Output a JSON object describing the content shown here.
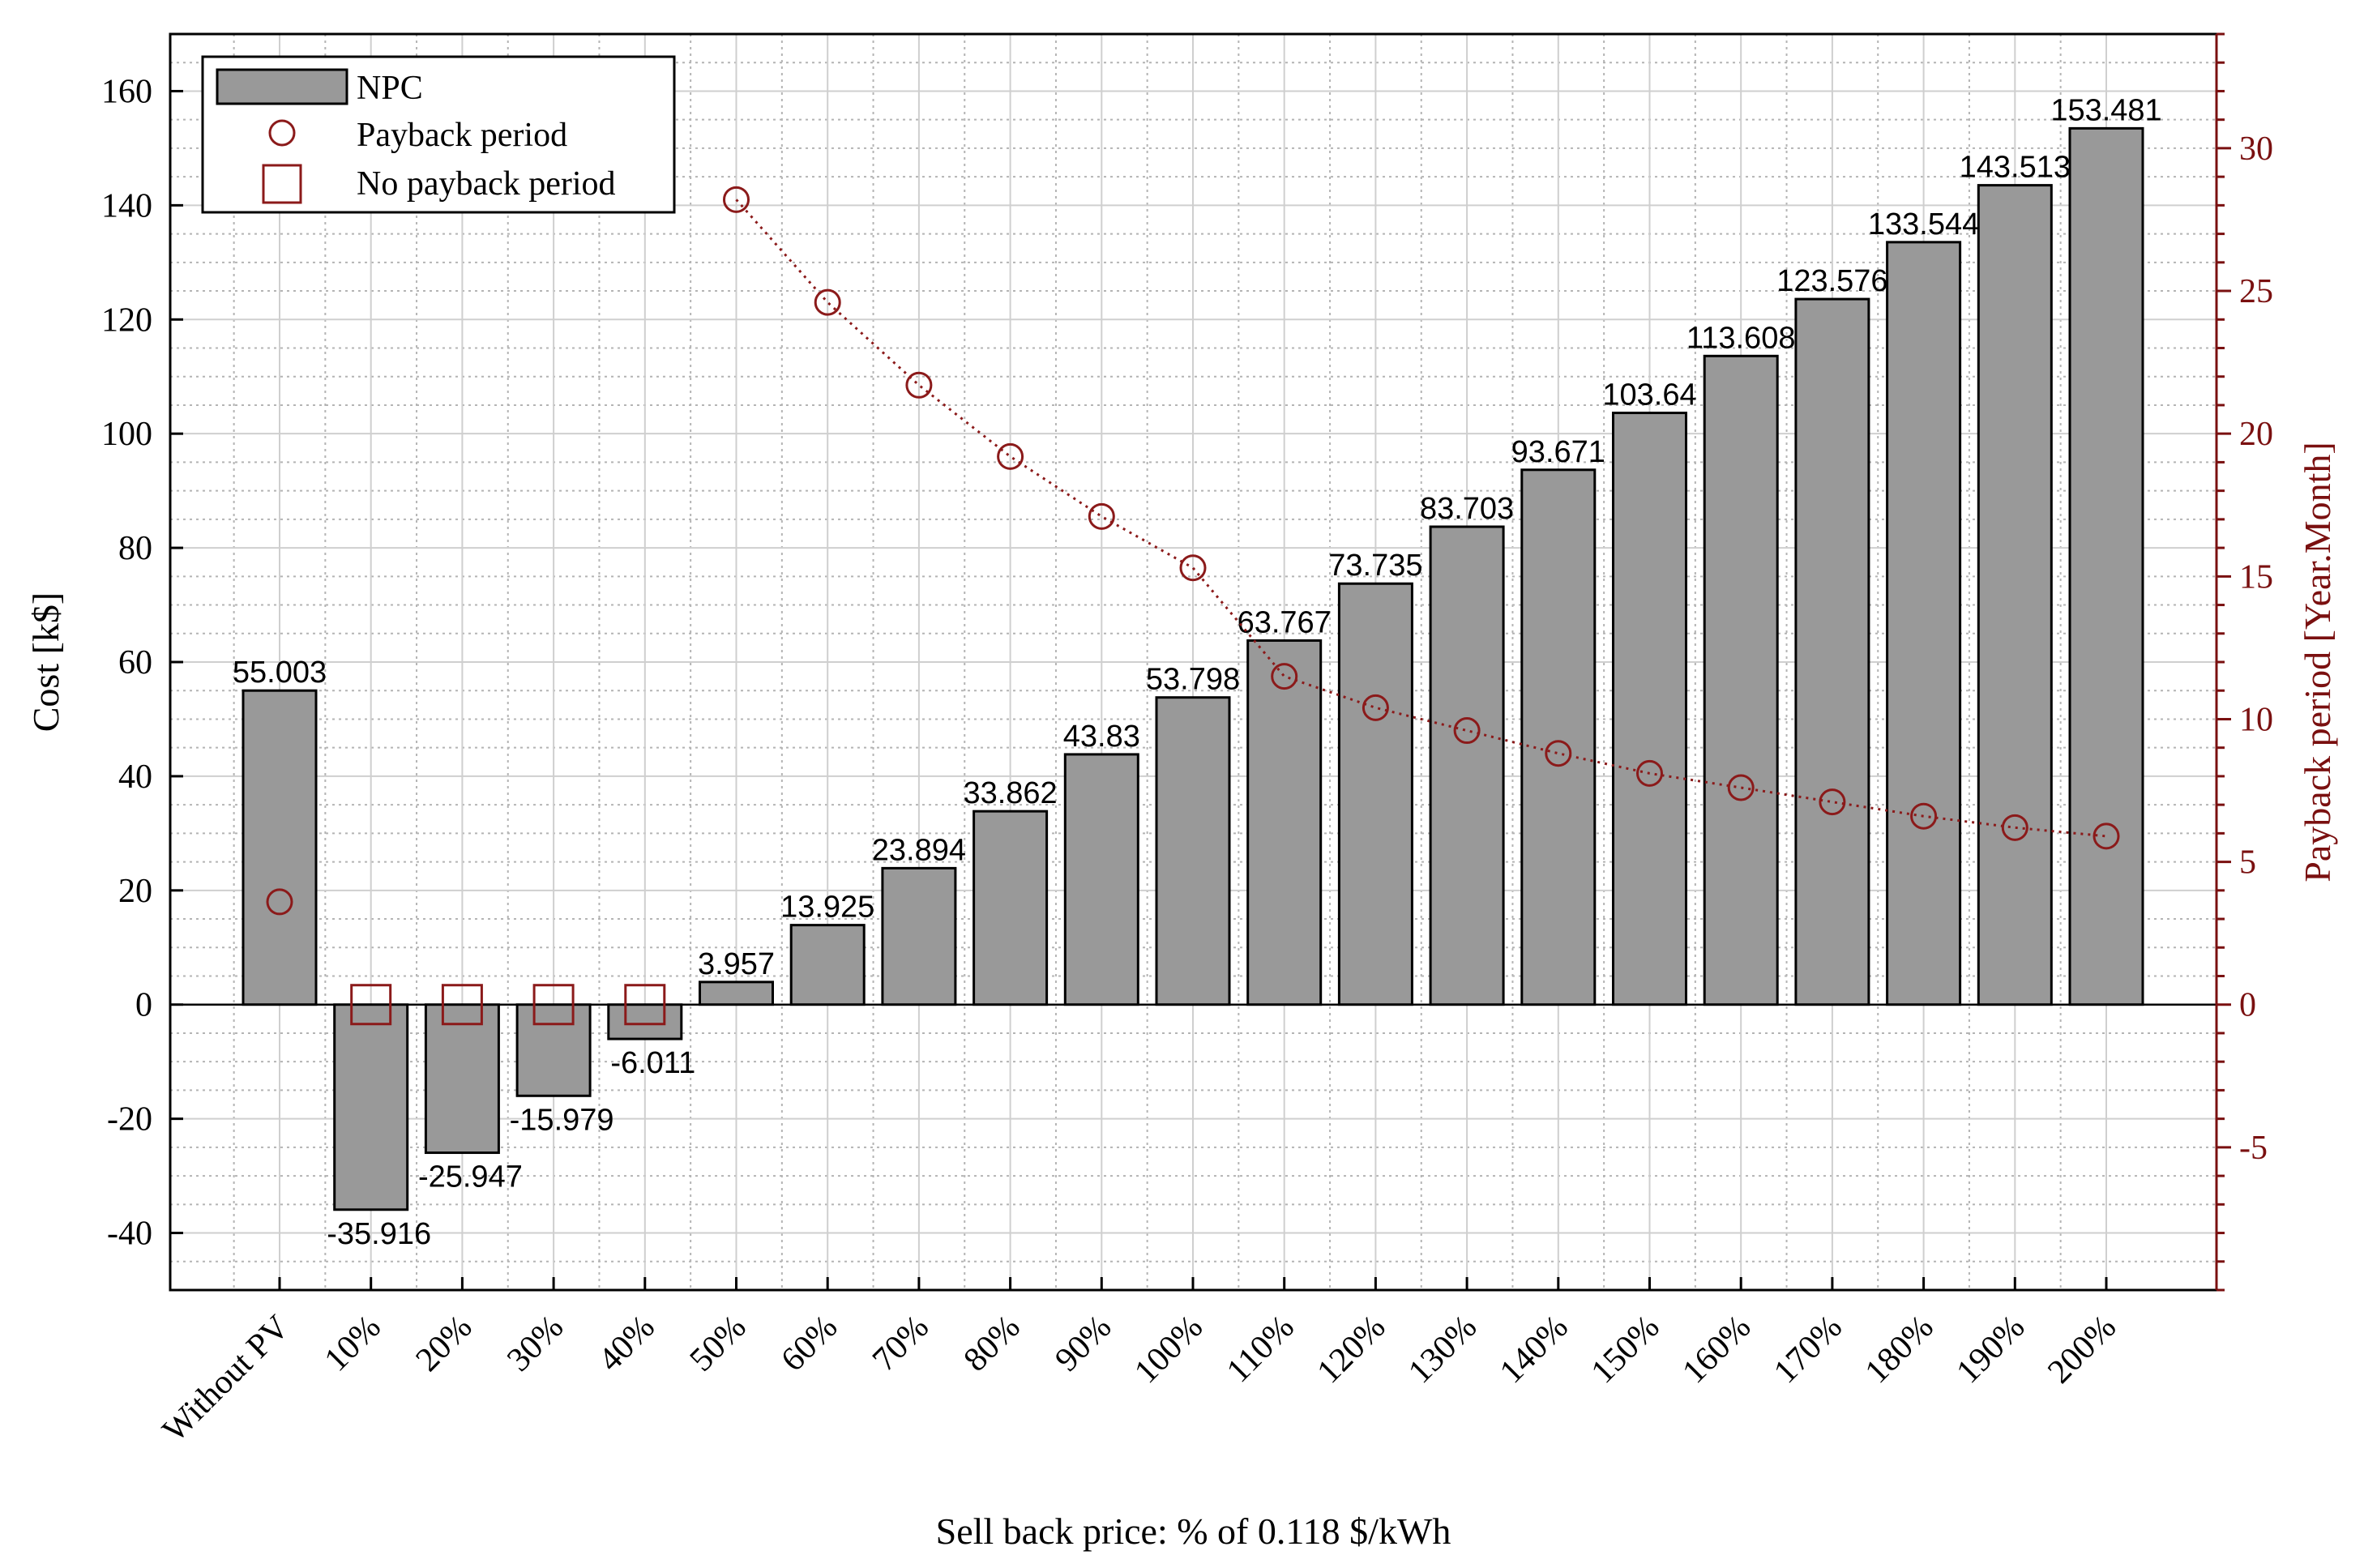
{
  "chart_data": {
    "type": "bar",
    "title": "",
    "xlabel": "Sell back price: % of 0.118 $/kWh",
    "ylabel": "Cost [k$]",
    "y2label": "Payback period [Year.Month]",
    "categories": [
      "Without PV",
      "10%",
      "20%",
      "30%",
      "40%",
      "50%",
      "60%",
      "70%",
      "80%",
      "90%",
      "100%",
      "110%",
      "120%",
      "130%",
      "140%",
      "150%",
      "160%",
      "170%",
      "180%",
      "190%",
      "200%"
    ],
    "ylim": [
      -50,
      170
    ],
    "y2lim": [
      -10,
      34
    ],
    "yticks": [
      -40,
      -20,
      0,
      20,
      40,
      60,
      80,
      100,
      120,
      140,
      160
    ],
    "y2ticks": [
      -5,
      0,
      5,
      10,
      15,
      20,
      25,
      30
    ],
    "grid": true,
    "legend_position": "top-left",
    "series": [
      {
        "name": "NPC",
        "type": "bar",
        "axis": "left",
        "values": [
          55.003,
          -35.916,
          -25.947,
          -15.979,
          -6.011,
          3.957,
          13.925,
          23.894,
          33.862,
          43.83,
          53.798,
          63.767,
          73.735,
          83.703,
          93.671,
          103.64,
          113.608,
          123.576,
          133.544,
          143.513,
          153.481
        ],
        "labels": [
          "55.003",
          "-35.916",
          "-25.947",
          "-15.979",
          "-6.011",
          "3.957",
          "13.925",
          "23.894",
          "33.862",
          "43.83",
          "53.798",
          "63.767",
          "73.735",
          "83.703",
          "93.671",
          "103.64",
          "113.608",
          "123.576",
          "133.544",
          "143.513",
          "153.481"
        ]
      },
      {
        "name": "Payback period",
        "type": "line",
        "axis": "right",
        "values": [
          3.6,
          null,
          null,
          null,
          null,
          28.2,
          24.6,
          21.7,
          19.2,
          17.1,
          15.3,
          11.5,
          10.4,
          9.6,
          8.8,
          8.1,
          7.6,
          7.1,
          6.6,
          6.2,
          5.9
        ]
      },
      {
        "name": "No payback period",
        "type": "marker",
        "axis": "right",
        "values": [
          null,
          0,
          0,
          0,
          0,
          null,
          null,
          null,
          null,
          null,
          null,
          null,
          null,
          null,
          null,
          null,
          null,
          null,
          null,
          null,
          null
        ]
      }
    ]
  },
  "colors": {
    "bar_fill": "#999999",
    "bar_edge": "#000000",
    "marker": "#8B1A1A",
    "right_axis": "#7A1010",
    "grid": "#b4b4b4"
  }
}
